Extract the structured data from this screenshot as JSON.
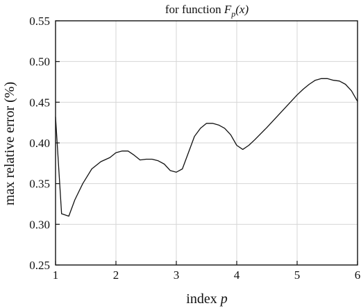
{
  "chart_data": {
    "type": "line",
    "title": "for function F_p(x)",
    "title_parts": {
      "prefix": "for function ",
      "func": "F",
      "subscript": "p",
      "suffix": "(x)"
    },
    "xlabel": "index p",
    "xlabel_parts": {
      "text": "index ",
      "var": "p"
    },
    "ylabel": "max relative error (%)",
    "xlim": [
      1,
      6
    ],
    "ylim": [
      0.25,
      0.55
    ],
    "xticks": [
      "1",
      "2",
      "3",
      "4",
      "5",
      "6"
    ],
    "yticks": [
      "0.25",
      "0.30",
      "0.35",
      "0.40",
      "0.45",
      "0.50",
      "0.55"
    ],
    "grid": true,
    "colors": {
      "line": "#111111",
      "grid": "#d6d6d6",
      "frame": "#111111"
    },
    "series": [
      {
        "x": [
          1.0,
          1.1,
          1.22,
          1.32,
          1.45,
          1.6,
          1.75,
          1.9,
          2.0,
          2.1,
          2.2,
          2.3,
          2.4,
          2.5,
          2.6,
          2.7,
          2.8,
          2.9,
          3.0,
          3.1,
          3.2,
          3.3,
          3.4,
          3.5,
          3.6,
          3.7,
          3.8,
          3.9,
          4.0,
          4.1,
          4.2,
          4.3,
          4.5,
          4.7,
          4.9,
          5.0,
          5.1,
          5.2,
          5.3,
          5.4,
          5.5,
          5.6,
          5.7,
          5.8,
          5.9,
          6.0
        ],
        "y": [
          0.432,
          0.313,
          0.31,
          0.33,
          0.35,
          0.368,
          0.377,
          0.382,
          0.388,
          0.39,
          0.39,
          0.385,
          0.379,
          0.38,
          0.38,
          0.378,
          0.374,
          0.366,
          0.364,
          0.368,
          0.388,
          0.408,
          0.418,
          0.424,
          0.424,
          0.422,
          0.418,
          0.41,
          0.397,
          0.392,
          0.397,
          0.404,
          0.419,
          0.435,
          0.451,
          0.459,
          0.466,
          0.472,
          0.477,
          0.479,
          0.479,
          0.477,
          0.476,
          0.472,
          0.464,
          0.451
        ]
      }
    ]
  }
}
